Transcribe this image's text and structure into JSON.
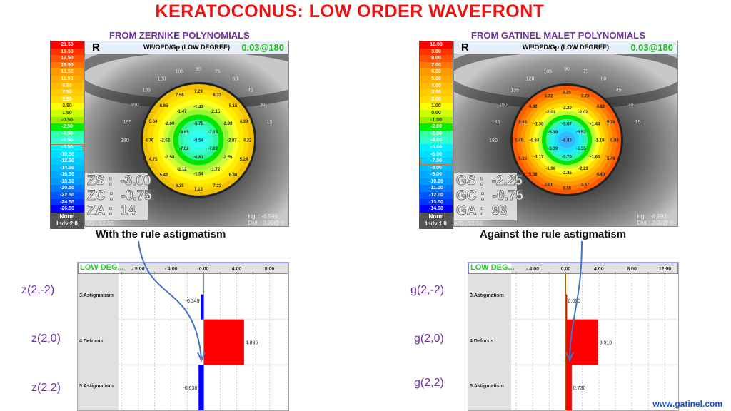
{
  "title": "KERATOCONUS:  LOW ORDER WAVEFRONT",
  "panels": [
    {
      "subtitle": "FROM ZERNIKE POLYNOMIALS",
      "eye": "R",
      "map_title": "WF/OPD/Gp (LOW DEGREE)",
      "map_value": "0.03@180",
      "scale": [
        "21.50",
        "19.50",
        "17.50",
        "15.50",
        "13.50",
        "11.50",
        "9.50",
        "7.50",
        "5.50",
        "3.50",
        "1.50",
        "-0.50",
        "-2.50",
        "-4.50",
        "-6.50",
        "-8.50",
        "-10.50",
        "-12.50",
        "-14.50",
        "-16.50",
        "-18.50",
        "-20.50",
        "-22.50",
        "-24.50",
        "-26.50"
      ],
      "scale_highlight": "-8.50",
      "norm_line1": "Norm",
      "norm_line2": "Indv 2.0",
      "ring_colors": [
        "#f2c200",
        "#ffd800",
        "#ffee00",
        "#ffff22",
        "#ccff33",
        "#99f533",
        "#00e600",
        "#33f5a0",
        "#33ffcc",
        "#33ffee",
        "#22ffff"
      ],
      "outer": [
        "7.29",
        "6.33",
        "5.15",
        "4.30",
        "4.22",
        "5.24",
        "6.46",
        "7.23",
        "7.13",
        "6.35",
        "5.42",
        "4.75",
        "4.76",
        "5.64",
        "6.95",
        "7.56"
      ],
      "middle": [
        "-1.43",
        "-2.15",
        "-2.83",
        "-2.87",
        "-2.59",
        "-1.72",
        "-1.54",
        "-2.12",
        "-2.58",
        "-2.52",
        "-2.00",
        "-1.47"
      ],
      "inner": [
        "-6.75",
        "-7.13",
        "-7.02",
        "-6.81",
        "-7.02",
        "-6.85"
      ],
      "center": "-8.54",
      "angles": [
        "180",
        "165",
        "150",
        "135",
        "120",
        "105",
        "90",
        "75",
        "60",
        "45",
        "30",
        "15"
      ],
      "coef": [
        "ZS :  -3.00",
        "ZC :  -0.75",
        "ZA :  14"
      ],
      "vd": "VD : 12.00",
      "hgt": "Hgt : -6.599",
      "dist": "Dist : 0.00@ 0",
      "caption": "With the rule astigmatism",
      "chart_data": {
        "type": "bar",
        "orientation": "horizontal",
        "header": "LOW DEG...",
        "categories": [
          "3.Astigmatism",
          "4.Defocus",
          "5.Astigmatism"
        ],
        "values": [
          -0.349,
          4.895,
          -0.638
        ],
        "value_labels": [
          "-0.349",
          "4.895",
          "-0.638"
        ],
        "ticks": [
          "- 8.00",
          "- 4.00",
          "0.00",
          "4.00",
          "8.00"
        ],
        "tick_values": [
          -8,
          -4,
          0,
          4,
          8
        ],
        "xlim": [
          -10.4,
          10.3
        ]
      },
      "row_symbols": [
        "z(2,-2)",
        "z(2,0)",
        "z(2,2)"
      ]
    },
    {
      "subtitle": "FROM GATINEL MALET POLYNOMIALS",
      "eye": "R",
      "map_title": "WF/OPD/Gp (LOW DEGREE)",
      "map_value": "0.03@180",
      "scale": [
        "10.00",
        "9.00",
        "8.00",
        "7.00",
        "6.00",
        "5.00",
        "4.00",
        "3.00",
        "2.00",
        "1.00",
        "0.00",
        "-1.00",
        "-2.00",
        "-3.00",
        "-4.00",
        "-5.00",
        "-6.00",
        "-7.00",
        "-8.00",
        "-9.00",
        "-10.00",
        "-11.00",
        "-12.00",
        "-13.00",
        "-14.00"
      ],
      "scale_highlight": "-7.00",
      "norm_line1": "Norm",
      "norm_line2": "Indv 1.0",
      "ring_colors": [
        "#ff5a00",
        "#ff7a00",
        "#ff9a00",
        "#ffbb00",
        "#ffdd00",
        "#ffff22",
        "#bbff33",
        "#00e600",
        "#33f5b0",
        "#22f0ee",
        "#22ddff",
        "#33bbff",
        "#44aaff"
      ],
      "outer": [
        "3.25",
        "3.73",
        "4.82",
        "5.78",
        "5.88",
        "5.46",
        "4.40",
        "3.47",
        "3.18",
        "3.01",
        "5.58",
        "5.15",
        "5.40",
        "5.83",
        "4.62",
        "3.72"
      ],
      "middle": [
        "-2.29",
        "-2.02",
        "-1.44",
        "-1.19",
        "-1.65",
        "-2.23",
        "-2.35",
        "-1.96",
        "-1.17",
        "-0.84",
        "-1.30",
        "-2.03"
      ],
      "inner": [
        "-5.67",
        "-5.51",
        "-5.55",
        "-5.70",
        "-5.39",
        "-5.39"
      ],
      "center": "-6.82",
      "angles": [
        "180",
        "165",
        "150",
        "135",
        "120",
        "105",
        "90",
        "75",
        "60",
        "45",
        "30",
        "15"
      ],
      "coef": [
        "GS :  -2.25",
        "GC :  -0.75",
        "GA :  93"
      ],
      "vd": "VD : 12.00",
      "hgt": "Hgt : -6.893",
      "dist": "Dist : 0.00@ 0",
      "caption": "Against the rule astigmatism",
      "chart_data": {
        "type": "bar",
        "orientation": "horizontal",
        "header": "LOW DEG...",
        "categories": [
          "3.Astigmatism",
          "4.Defocus",
          "5.Astigmatism"
        ],
        "values": [
          0.09,
          3.91,
          0.73
        ],
        "value_labels": [
          "0.090",
          "3.910",
          "0.730"
        ],
        "ticks": [
          "- 4.00",
          "0.00",
          "4.00",
          "8.00",
          "12.00"
        ],
        "tick_values": [
          -4,
          0,
          4,
          8,
          12
        ],
        "xlim": [
          -6.6,
          13.6
        ]
      },
      "row_symbols": [
        "g(2,-2)",
        "g(2,0)",
        "g(2,2)"
      ]
    }
  ],
  "scale_colors": [
    "#ff0000",
    "#ff3300",
    "#ff5500",
    "#ff7700",
    "#ff9900",
    "#ffaa00",
    "#ffbb00",
    "#ffcc00",
    "#ffdd00",
    "#ffff00",
    "#ccff00",
    "#99ee00",
    "#00ee00",
    "#33ffaa",
    "#33ffcc",
    "#00eeff",
    "#00ddff",
    "#00ccff",
    "#00bbff",
    "#00aaff",
    "#0099ff",
    "#0077ff",
    "#0055ff",
    "#0033ff",
    "#0000ff"
  ],
  "positive_bar_color": "#ff0000",
  "negative_bar_color": "#0000ff",
  "arrow_color": "#4472c4",
  "website": "www.gatinel.com"
}
